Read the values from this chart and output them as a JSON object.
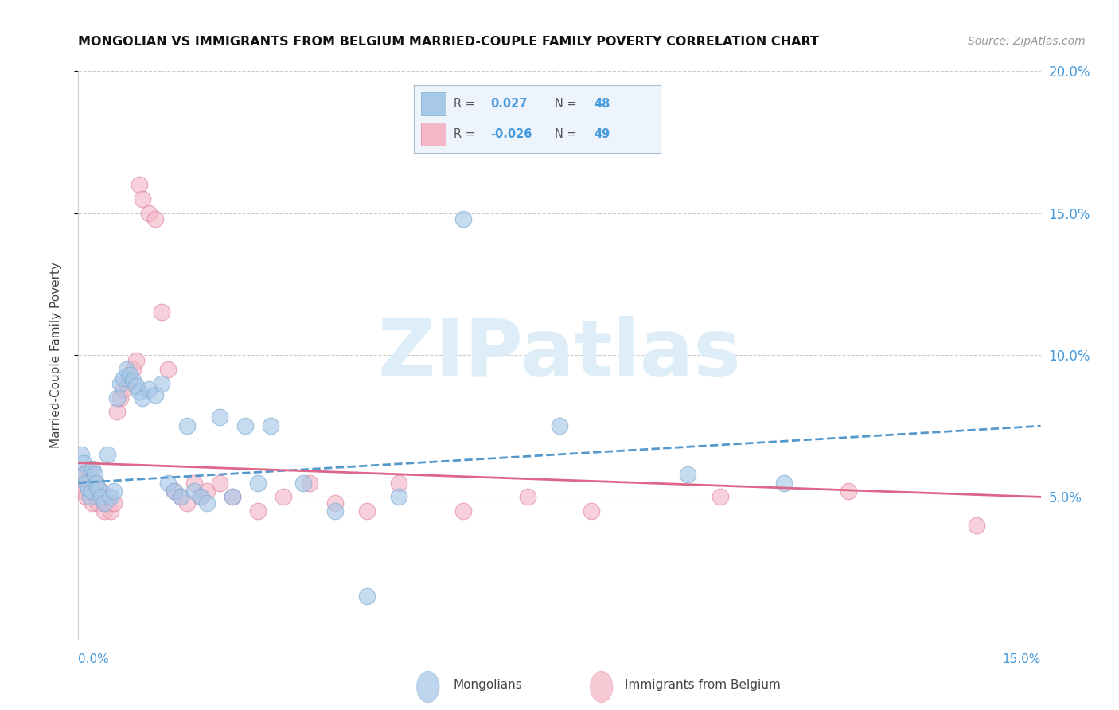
{
  "title": "MONGOLIAN VS IMMIGRANTS FROM BELGIUM MARRIED-COUPLE FAMILY POVERTY CORRELATION CHART",
  "source": "Source: ZipAtlas.com",
  "ylabel": "Married-Couple Family Poverty",
  "xlim": [
    0.0,
    15.0
  ],
  "ylim": [
    0.0,
    20.0
  ],
  "yticks": [
    5.0,
    10.0,
    15.0,
    20.0
  ],
  "ytick_labels": [
    "5.0%",
    "10.0%",
    "15.0%",
    "20.0%"
  ],
  "grid_color": "#cccccc",
  "background_color": "#ffffff",
  "mongolian_color": "#a8c8e8",
  "mongolian_edge_color": "#7aaad0",
  "belgium_color": "#f4b8c8",
  "belgium_edge_color": "#e080a0",
  "mongolian_R": 0.027,
  "mongolian_N": 48,
  "belgium_R": -0.026,
  "belgium_N": 49,
  "mongolian_x": [
    0.05,
    0.08,
    0.1,
    0.12,
    0.15,
    0.18,
    0.2,
    0.22,
    0.25,
    0.28,
    0.3,
    0.35,
    0.4,
    0.45,
    0.5,
    0.55,
    0.6,
    0.65,
    0.7,
    0.75,
    0.8,
    0.85,
    0.9,
    0.95,
    1.0,
    1.1,
    1.2,
    1.3,
    1.4,
    1.5,
    1.6,
    1.7,
    1.8,
    1.9,
    2.0,
    2.2,
    2.4,
    2.6,
    2.8,
    3.0,
    3.5,
    4.0,
    4.5,
    5.0,
    6.0,
    7.5,
    9.5,
    11.0
  ],
  "mongolian_y": [
    6.5,
    6.2,
    5.8,
    5.5,
    5.3,
    5.0,
    5.2,
    6.0,
    5.8,
    5.5,
    5.3,
    5.0,
    4.8,
    6.5,
    5.0,
    5.2,
    8.5,
    9.0,
    9.2,
    9.5,
    9.3,
    9.1,
    8.9,
    8.7,
    8.5,
    8.8,
    8.6,
    9.0,
    5.5,
    5.2,
    5.0,
    7.5,
    5.2,
    5.0,
    4.8,
    7.8,
    5.0,
    7.5,
    5.5,
    7.5,
    5.5,
    4.5,
    1.5,
    5.0,
    14.8,
    7.5,
    5.8,
    5.5
  ],
  "belgium_x": [
    0.05,
    0.08,
    0.1,
    0.12,
    0.15,
    0.18,
    0.2,
    0.22,
    0.25,
    0.28,
    0.3,
    0.35,
    0.4,
    0.45,
    0.5,
    0.55,
    0.6,
    0.65,
    0.7,
    0.75,
    0.8,
    0.85,
    0.9,
    0.95,
    1.0,
    1.1,
    1.2,
    1.3,
    1.4,
    1.5,
    1.6,
    1.7,
    1.8,
    1.9,
    2.0,
    2.2,
    2.4,
    2.8,
    3.2,
    3.6,
    4.0,
    4.5,
    5.0,
    6.0,
    7.0,
    8.0,
    10.0,
    12.0,
    14.0
  ],
  "belgium_y": [
    5.5,
    5.2,
    5.8,
    5.0,
    6.0,
    5.5,
    5.3,
    4.8,
    5.5,
    5.0,
    4.8,
    5.2,
    4.5,
    4.8,
    4.5,
    4.8,
    8.0,
    8.5,
    8.8,
    9.0,
    9.2,
    9.5,
    9.8,
    16.0,
    15.5,
    15.0,
    14.8,
    11.5,
    9.5,
    5.2,
    5.0,
    4.8,
    5.5,
    5.0,
    5.2,
    5.5,
    5.0,
    4.5,
    5.0,
    5.5,
    4.8,
    4.5,
    5.5,
    4.5,
    5.0,
    4.5,
    5.0,
    5.2,
    4.0
  ],
  "mongolian_line_color": "#5599cc",
  "belgium_line_color": "#dd6688",
  "watermark_text": "ZIPatlas",
  "watermark_color": "#ddeef8",
  "legend_mongolian_label": "R =  0.027   N = 48",
  "legend_belgium_label": "R = -0.026   N = 49",
  "legend_R_color": "#4499dd",
  "legend_N_color": "#4499dd",
  "bottom_label1": "Mongolians",
  "bottom_label2": "Immigrants from Belgium"
}
